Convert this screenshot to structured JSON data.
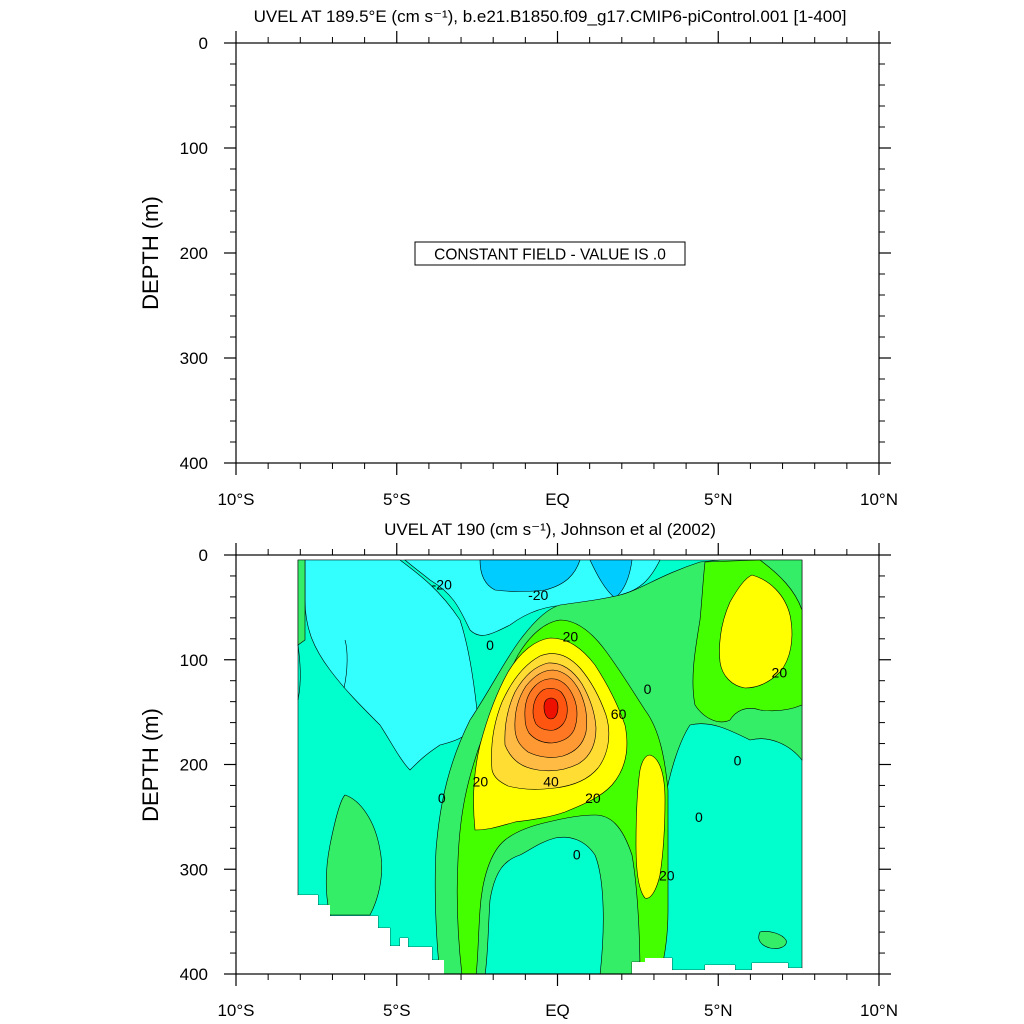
{
  "chart_data": [
    {
      "type": "contour",
      "title": "UVEL AT 189.5°E (cm s⁻¹), b.e21.B1850.f09_g17.CMIP6-piControl.001 [1-400]",
      "ylabel": "DEPTH (m)",
      "xlim": [
        -10,
        10
      ],
      "ylim": [
        400,
        0
      ],
      "x_ticks": [
        -10,
        -5,
        0,
        5,
        10
      ],
      "x_tick_labels": [
        "10°S",
        "5°S",
        "EQ",
        "5°N",
        "10°N"
      ],
      "y_ticks": [
        0,
        100,
        200,
        300,
        400
      ],
      "y_tick_labels": [
        "0",
        "100",
        "200",
        "300",
        "400"
      ],
      "annotation": "CONSTANT FIELD - VALUE IS .0"
    },
    {
      "type": "contour",
      "title": "UVEL AT 190 (cm s⁻¹), Johnson et al (2002)",
      "ylabel": "DEPTH (m)",
      "xlim": [
        -10,
        10
      ],
      "ylim": [
        400,
        0
      ],
      "x_ticks": [
        -10,
        -5,
        0,
        5,
        10
      ],
      "x_tick_labels": [
        "10°S",
        "5°S",
        "EQ",
        "5°N",
        "10°N"
      ],
      "y_ticks": [
        0,
        100,
        200,
        300,
        400
      ],
      "y_tick_labels": [
        "0",
        "100",
        "200",
        "300",
        "400"
      ],
      "contour_interval": 10,
      "levels": [
        -30,
        -20,
        -10,
        0,
        10,
        20,
        30,
        40,
        50,
        60,
        70,
        80,
        90
      ],
      "colors": {
        "lt_-20": "#00ccff",
        "-20_-10": "#33ffff",
        "-10_0": "#00ffcc",
        "0_10": "#33ee66",
        "10_20": "#44ff00",
        "20_30": "#ffff00",
        "30_40": "#ffdd33",
        "40_50": "#ffbb44",
        "50_60": "#ff9933",
        "60_70": "#ff7722",
        "70_80": "#ff5511",
        "gt_80": "#ee1100"
      },
      "core": {
        "lat": 0,
        "depth": 150,
        "max_speed": 85
      },
      "contour_labels": [
        {
          "text": "-20",
          "lat": -3.6,
          "depth": 28
        },
        {
          "text": "-20",
          "lat": -0.6,
          "depth": 38
        },
        {
          "text": "20",
          "lat": 0.4,
          "depth": 78
        },
        {
          "text": "0",
          "lat": -2.1,
          "depth": 86
        },
        {
          "text": "0",
          "lat": 5.6,
          "depth": 196
        },
        {
          "text": "20",
          "lat": 6.9,
          "depth": 112
        },
        {
          "text": "0",
          "lat": 2.8,
          "depth": 128
        },
        {
          "text": "60",
          "lat": 1.9,
          "depth": 152
        },
        {
          "text": "20",
          "lat": -2.4,
          "depth": 216
        },
        {
          "text": "40",
          "lat": -0.2,
          "depth": 216
        },
        {
          "text": "20",
          "lat": 1.1,
          "depth": 232
        },
        {
          "text": "0",
          "lat": -3.6,
          "depth": 232
        },
        {
          "text": "0",
          "lat": 0.6,
          "depth": 286
        },
        {
          "text": "0",
          "lat": 4.4,
          "depth": 250
        },
        {
          "text": "20",
          "lat": 3.4,
          "depth": 306
        }
      ]
    }
  ]
}
